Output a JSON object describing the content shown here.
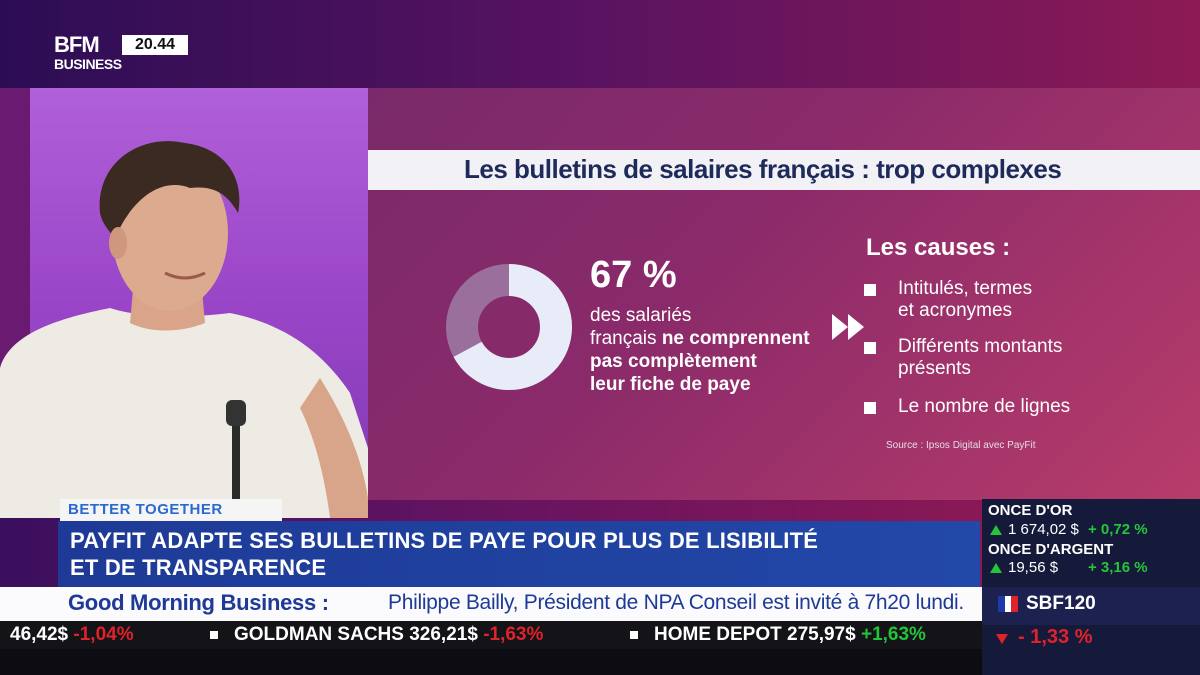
{
  "channel": {
    "logo_top": "BFM",
    "logo_bottom": "BUSINESS",
    "time": "20.44"
  },
  "graphic": {
    "title": "Les bulletins de salaires français : trop complexes",
    "stat_value": "67 %",
    "stat_percent": 67,
    "stat_text_1": "des salariés",
    "stat_text_2": "français",
    "stat_text_bold_1": "ne comprennent",
    "stat_text_bold_2": "pas complètement",
    "stat_text_bold_3": "leur fiche de paye",
    "causes_title": "Les causes :",
    "causes": [
      {
        "line1": "Intitulés, termes",
        "line2": "et acronymes"
      },
      {
        "line1": "Différents montants",
        "line2": "présents"
      },
      {
        "line1": "Le nombre de lignes",
        "line2": ""
      }
    ],
    "source": "Source : Ipsos Digital avec PayFit",
    "colors": {
      "donut_fill": "#e8ecf8",
      "donut_rest": "#9b6f9c"
    }
  },
  "lower_third": {
    "tag": "BETTER TOGETHER",
    "headline_1": "PAYFIT ADAPTE SES BULLETINS DE PAYE POUR PLUS DE LISIBILITÉ",
    "headline_2": "ET DE TRANSPARENCE",
    "show_name": "Good Morning Business :",
    "crawl": "Philippe Bailly, Président de NPA Conseil est invité à 7h20 lundi."
  },
  "ticker": [
    {
      "text": "46,42$",
      "change": "-1,04%"
    },
    {
      "text": "GOLDMAN SACHS 326,21$",
      "change": "-1,63%"
    },
    {
      "text": "HOME DEPOT 275,97$",
      "change": "+1,63%"
    }
  ],
  "market": {
    "gold_label": "ONCE D'OR",
    "gold_value": "1 674,02 $",
    "gold_change": "+ 0,72 %",
    "silver_label": "ONCE D'ARGENT",
    "silver_value": "19,56 $",
    "silver_change": "+ 3,16 %",
    "index_name": "SBF120",
    "index_change": "- 1,33 %"
  }
}
